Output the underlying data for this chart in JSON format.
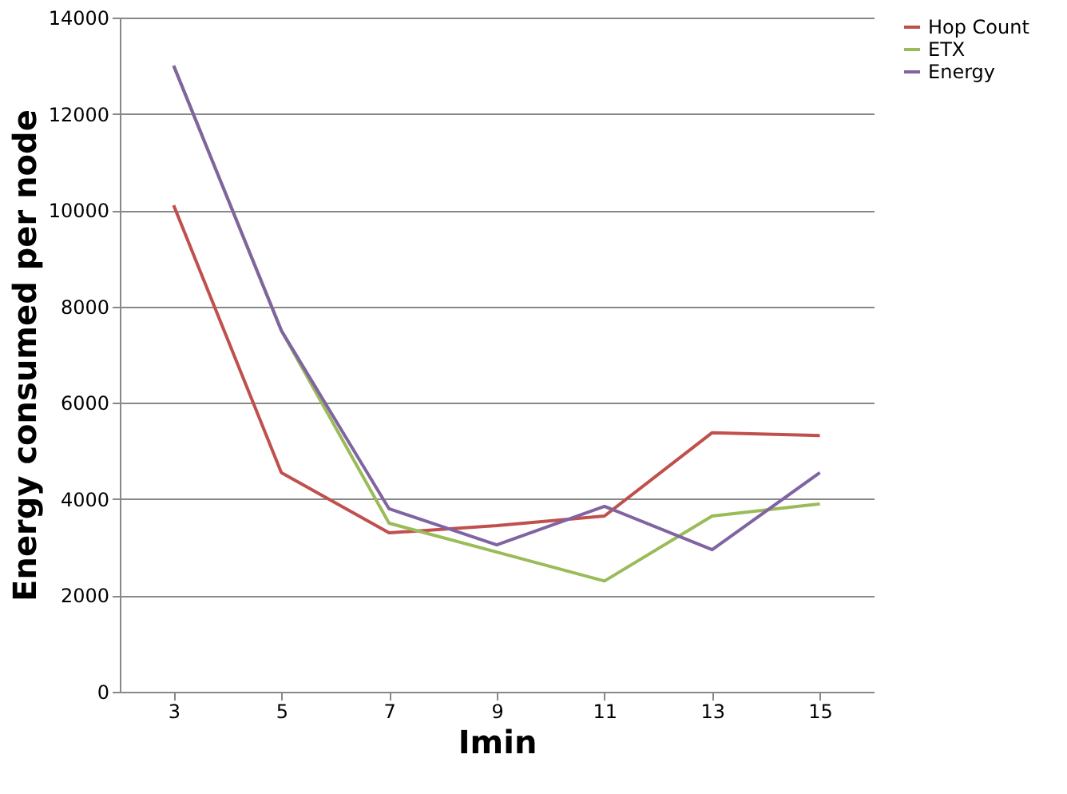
{
  "chart_data": {
    "type": "line",
    "xlabel": "Imin",
    "ylabel": "Energy consumed per node",
    "categories": [
      "3",
      "5",
      "7",
      "9",
      "11",
      "13",
      "15"
    ],
    "series": [
      {
        "name": "Hop Count",
        "color": "#c0504d",
        "values": [
          10100,
          4550,
          3300,
          3450,
          3650,
          5380,
          5320
        ]
      },
      {
        "name": "ETX",
        "color": "#9bbb59",
        "values": [
          13000,
          7500,
          3500,
          2900,
          2300,
          3650,
          3900
        ]
      },
      {
        "name": "Energy",
        "color": "#8064a2",
        "values": [
          13000,
          7500,
          3800,
          3050,
          3850,
          2950,
          4550
        ]
      }
    ],
    "ylim": [
      0,
      14000
    ],
    "yticks": [
      0,
      2000,
      4000,
      6000,
      8000,
      10000,
      12000,
      14000
    ],
    "grid": "y",
    "legend": "right",
    "marker": "none",
    "line_style": "solid"
  }
}
